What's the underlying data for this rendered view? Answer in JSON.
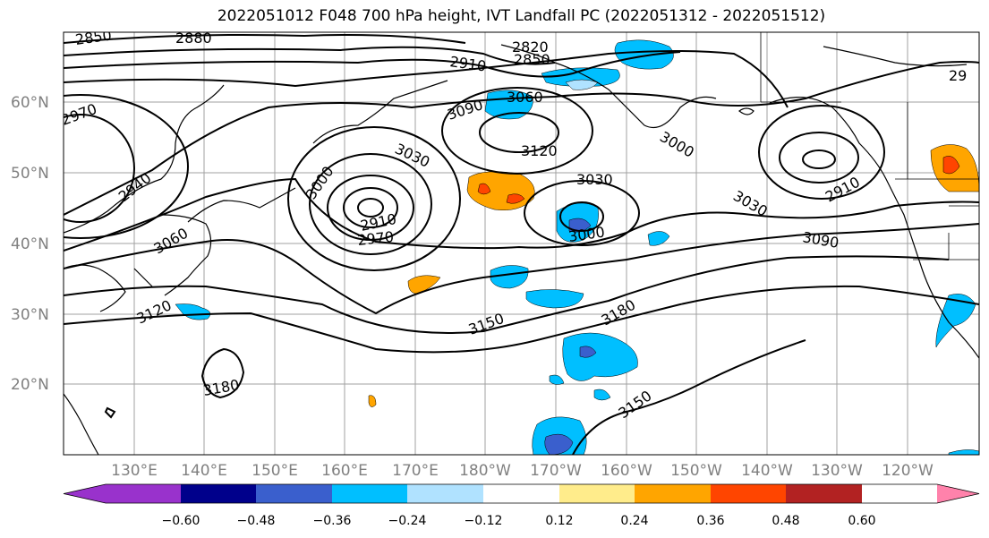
{
  "title": "2022051012 F048 700 hPa height, IVT Landfall PC (2022051312 - 2022051512)",
  "lat_labels": [
    "60°N",
    "50°N",
    "40°N",
    "30°N",
    "20°N"
  ],
  "lon_labels": [
    "130°E",
    "140°E",
    "150°E",
    "160°E",
    "170°E",
    "180°W",
    "170°W",
    "160°W",
    "150°W",
    "140°W",
    "130°W",
    "120°W"
  ],
  "contour_labels": [
    "2850",
    "2880",
    "2820",
    "2850",
    "2910",
    "2970",
    "3060",
    "3090",
    "3120",
    "3030",
    "3030",
    "3000",
    "2910",
    "2970",
    "3000",
    "3000",
    "3030",
    "2910",
    "29",
    "3090",
    "2940",
    "3060",
    "3120",
    "3150",
    "3180",
    "3180",
    "3150"
  ],
  "colorbar": {
    "tick_labels": [
      "−0.60",
      "−0.48",
      "−0.36",
      "−0.24",
      "−0.12",
      "0.12",
      "0.24",
      "0.36",
      "0.48",
      "0.60"
    ],
    "colors": [
      "#9932cc",
      "#00008b",
      "#3a5fcd",
      "#00bfff",
      "#b0e2ff",
      "#ffffff",
      "#ffec8b",
      "#ffa500",
      "#ff4500",
      "#b22222",
      "#ff82ab"
    ]
  }
}
